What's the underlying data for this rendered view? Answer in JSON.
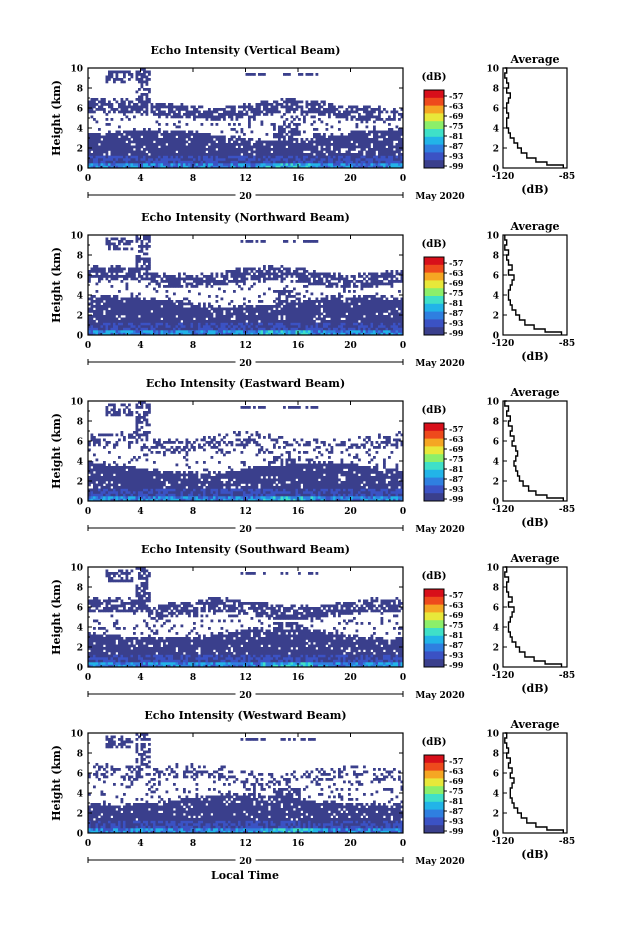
{
  "figure": {
    "xlabel": "Local Time",
    "month_label": "May 2020",
    "day_label": "20",
    "colorbar_unit": "(dB)",
    "colorbar_ticks": [
      "-57",
      "-63",
      "-69",
      "-75",
      "-81",
      "-87",
      "-93",
      "-99"
    ],
    "colors": [
      "#3a3f8c",
      "#3b52c4",
      "#2f7fe0",
      "#22b4e8",
      "#3fe0c8",
      "#8cef6a",
      "#e8e83a",
      "#f5a623",
      "#ee4a1c",
      "#d80f1a"
    ]
  },
  "chart_data": [
    {
      "type": "heatmap",
      "title": "Echo Intensity (Vertical Beam)",
      "ylabel": "Height (km)",
      "x_ticks": [
        "0",
        "4",
        "8",
        "12",
        "16",
        "20",
        "0"
      ],
      "xlim": [
        0,
        24
      ],
      "y_ticks": [
        "0",
        "2",
        "4",
        "6",
        "8",
        "10"
      ],
      "ylim": [
        0,
        10
      ],
      "colorbar_range": [
        -99,
        -57
      ],
      "average_profile": {
        "title": "Average",
        "xlabel": "(dB)",
        "x_ticks": [
          "-120",
          "-85"
        ],
        "xlim": [
          -120,
          -85
        ],
        "y_ticks": [
          "0",
          "2",
          "4",
          "6",
          "8",
          "10"
        ],
        "heights": [
          0,
          0.3,
          0.6,
          1.0,
          1.5,
          2.0,
          2.5,
          3.0,
          3.5,
          4.0,
          4.5,
          5.0,
          5.5,
          6.0,
          6.5,
          7.0,
          7.5,
          8.0,
          8.5,
          9.0,
          9.5,
          10.0
        ],
        "values": [
          -87,
          -96,
          -102,
          -107,
          -110,
          -112,
          -114,
          -116,
          -117,
          -118,
          -118,
          -117,
          -118,
          -118,
          -117,
          -116,
          -118,
          -117,
          -118,
          -119,
          -118,
          -119
        ]
      }
    },
    {
      "type": "heatmap",
      "title": "Echo Intensity (Northward Beam)",
      "ylabel": "Height (km)",
      "x_ticks": [
        "0",
        "4",
        "8",
        "12",
        "16",
        "20",
        "0"
      ],
      "xlim": [
        0,
        24
      ],
      "y_ticks": [
        "0",
        "2",
        "4",
        "6",
        "8",
        "10"
      ],
      "ylim": [
        0,
        10
      ],
      "colorbar_range": [
        -99,
        -57
      ],
      "average_profile": {
        "title": "Average",
        "xlabel": "(dB)",
        "x_ticks": [
          "-120",
          "-85"
        ],
        "xlim": [
          -120,
          -85
        ],
        "y_ticks": [
          "0",
          "2",
          "4",
          "6",
          "8",
          "10"
        ],
        "heights": [
          0,
          0.3,
          0.6,
          1.0,
          1.5,
          2.0,
          2.5,
          3.0,
          3.5,
          4.0,
          4.5,
          5.0,
          5.5,
          6.0,
          6.5,
          7.0,
          7.5,
          8.0,
          8.5,
          9.0,
          9.5,
          10.0
        ],
        "values": [
          -88,
          -97,
          -103,
          -108,
          -111,
          -113,
          -115,
          -116,
          -117,
          -117,
          -116,
          -115,
          -114,
          -117,
          -115,
          -117,
          -118,
          -117,
          -119,
          -118,
          -119,
          -119
        ]
      }
    },
    {
      "type": "heatmap",
      "title": "Echo Intensity (Eastward Beam)",
      "ylabel": "Height (km)",
      "x_ticks": [
        "0",
        "4",
        "8",
        "12",
        "16",
        "20",
        "0"
      ],
      "xlim": [
        0,
        24
      ],
      "y_ticks": [
        "0",
        "2",
        "4",
        "6",
        "8",
        "10"
      ],
      "ylim": [
        0,
        10
      ],
      "colorbar_range": [
        -99,
        -57
      ],
      "average_profile": {
        "title": "Average",
        "xlabel": "(dB)",
        "x_ticks": [
          "-120",
          "-85"
        ],
        "xlim": [
          -120,
          -85
        ],
        "y_ticks": [
          "0",
          "2",
          "4",
          "6",
          "8",
          "10"
        ],
        "heights": [
          0,
          0.3,
          0.6,
          1.0,
          1.5,
          2.0,
          2.5,
          3.0,
          3.5,
          4.0,
          4.5,
          5.0,
          5.5,
          6.0,
          6.5,
          7.0,
          7.5,
          8.0,
          8.5,
          9.0,
          9.5,
          10.0
        ],
        "values": [
          -87,
          -96,
          -102,
          -106,
          -109,
          -111,
          -112,
          -113,
          -114,
          -113,
          -112,
          -113,
          -115,
          -114,
          -116,
          -115,
          -117,
          -116,
          -118,
          -117,
          -119,
          -118
        ]
      }
    },
    {
      "type": "heatmap",
      "title": "Echo Intensity (Southward Beam)",
      "ylabel": "Height (km)",
      "x_ticks": [
        "0",
        "4",
        "8",
        "12",
        "16",
        "20",
        "0"
      ],
      "xlim": [
        0,
        24
      ],
      "y_ticks": [
        "0",
        "2",
        "4",
        "6",
        "8",
        "10"
      ],
      "ylim": [
        0,
        10
      ],
      "colorbar_range": [
        -99,
        -57
      ],
      "average_profile": {
        "title": "Average",
        "xlabel": "(dB)",
        "x_ticks": [
          "-120",
          "-85"
        ],
        "xlim": [
          -120,
          -85
        ],
        "y_ticks": [
          "0",
          "2",
          "4",
          "6",
          "8",
          "10"
        ],
        "heights": [
          0,
          0.3,
          0.6,
          1.0,
          1.5,
          2.0,
          2.5,
          3.0,
          3.5,
          4.0,
          4.5,
          5.0,
          5.5,
          6.0,
          6.5,
          7.0,
          7.5,
          8.0,
          8.5,
          9.0,
          9.5,
          10.0
        ],
        "values": [
          -88,
          -97,
          -103,
          -108,
          -111,
          -113,
          -115,
          -116,
          -117,
          -117,
          -116,
          -115,
          -114,
          -117,
          -115,
          -117,
          -118,
          -118,
          -117,
          -119,
          -118,
          -119
        ]
      }
    },
    {
      "type": "heatmap",
      "title": "Echo Intensity (Westward Beam)",
      "ylabel": "Height (km)",
      "x_ticks": [
        "0",
        "4",
        "8",
        "12",
        "16",
        "20",
        "0"
      ],
      "xlim": [
        0,
        24
      ],
      "y_ticks": [
        "0",
        "2",
        "4",
        "6",
        "8",
        "10"
      ],
      "ylim": [
        0,
        10
      ],
      "colorbar_range": [
        -99,
        -57
      ],
      "average_profile": {
        "title": "Average",
        "xlabel": "(dB)",
        "x_ticks": [
          "-120",
          "-85"
        ],
        "xlim": [
          -120,
          -85
        ],
        "y_ticks": [
          "0",
          "2",
          "4",
          "6",
          "8",
          "10"
        ],
        "heights": [
          0,
          0.3,
          0.6,
          1.0,
          1.5,
          2.0,
          2.5,
          3.0,
          3.5,
          4.0,
          4.5,
          5.0,
          5.5,
          6.0,
          6.5,
          7.0,
          7.5,
          8.0,
          8.5,
          9.0,
          9.5,
          10.0
        ],
        "values": [
          -87,
          -96,
          -102,
          -107,
          -110,
          -112,
          -114,
          -115,
          -116,
          -116,
          -115,
          -114,
          -116,
          -115,
          -117,
          -116,
          -118,
          -117,
          -118,
          -119,
          -118,
          -119
        ]
      }
    }
  ]
}
